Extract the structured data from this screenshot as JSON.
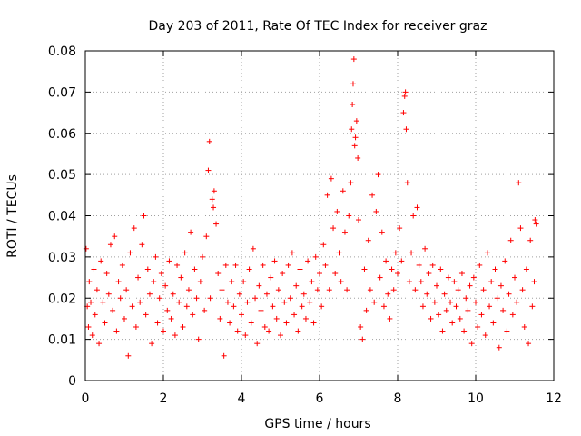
{
  "chart_data": {
    "type": "scatter",
    "title": "Day 203 of 2011, Rate Of TEC Index for receiver graz",
    "xlabel": "GPS time / hours",
    "ylabel": "ROTI / TECUs",
    "xlim": [
      0,
      12
    ],
    "ylim": [
      0,
      0.08
    ],
    "x_ticks": [
      0,
      2,
      4,
      6,
      8,
      10,
      12
    ],
    "x_tick_labels": [
      "0",
      "2",
      "4",
      "6",
      "8",
      "10",
      "12"
    ],
    "y_ticks": [
      0,
      0.01,
      0.02,
      0.03,
      0.04,
      0.05,
      0.06,
      0.07,
      0.08
    ],
    "y_tick_labels": [
      "0",
      "0.01",
      "0.02",
      "0.03",
      "0.04",
      "0.05",
      "0.06",
      "0.07",
      "0.08"
    ],
    "grid": true,
    "marker": "+",
    "marker_color": "#ff0000",
    "series": [
      {
        "name": "ROTI",
        "points": [
          [
            0.02,
            0.032
          ],
          [
            0.05,
            0.018
          ],
          [
            0.08,
            0.013
          ],
          [
            0.1,
            0.024
          ],
          [
            0.14,
            0.019
          ],
          [
            0.18,
            0.011
          ],
          [
            0.22,
            0.027
          ],
          [
            0.25,
            0.016
          ],
          [
            0.3,
            0.022
          ],
          [
            0.35,
            0.009
          ],
          [
            0.4,
            0.029
          ],
          [
            0.45,
            0.019
          ],
          [
            0.5,
            0.014
          ],
          [
            0.55,
            0.026
          ],
          [
            0.6,
            0.021
          ],
          [
            0.65,
            0.033
          ],
          [
            0.7,
            0.017
          ],
          [
            0.75,
            0.035
          ],
          [
            0.8,
            0.012
          ],
          [
            0.85,
            0.024
          ],
          [
            0.9,
            0.02
          ],
          [
            0.95,
            0.028
          ],
          [
            1.0,
            0.015
          ],
          [
            1.05,
            0.022
          ],
          [
            1.1,
            0.006
          ],
          [
            1.15,
            0.031
          ],
          [
            1.2,
            0.018
          ],
          [
            1.25,
            0.037
          ],
          [
            1.3,
            0.013
          ],
          [
            1.35,
            0.025
          ],
          [
            1.4,
            0.019
          ],
          [
            1.45,
            0.033
          ],
          [
            1.5,
            0.04
          ],
          [
            1.55,
            0.016
          ],
          [
            1.6,
            0.027
          ],
          [
            1.65,
            0.021
          ],
          [
            1.7,
            0.009
          ],
          [
            1.75,
            0.024
          ],
          [
            1.8,
            0.03
          ],
          [
            1.85,
            0.014
          ],
          [
            1.9,
            0.02
          ],
          [
            1.95,
            0.026
          ],
          [
            2.0,
            0.012
          ],
          [
            2.05,
            0.023
          ],
          [
            2.1,
            0.017
          ],
          [
            2.15,
            0.029
          ],
          [
            2.2,
            0.015
          ],
          [
            2.25,
            0.021
          ],
          [
            2.3,
            0.011
          ],
          [
            2.35,
            0.028
          ],
          [
            2.4,
            0.019
          ],
          [
            2.45,
            0.025
          ],
          [
            2.5,
            0.013
          ],
          [
            2.55,
            0.031
          ],
          [
            2.6,
            0.018
          ],
          [
            2.65,
            0.022
          ],
          [
            2.7,
            0.036
          ],
          [
            2.75,
            0.016
          ],
          [
            2.8,
            0.027
          ],
          [
            2.85,
            0.02
          ],
          [
            2.9,
            0.01
          ],
          [
            2.95,
            0.024
          ],
          [
            3.0,
            0.03
          ],
          [
            3.05,
            0.017
          ],
          [
            3.1,
            0.035
          ],
          [
            3.15,
            0.051
          ],
          [
            3.18,
            0.058
          ],
          [
            3.2,
            0.02
          ],
          [
            3.25,
            0.044
          ],
          [
            3.28,
            0.042
          ],
          [
            3.3,
            0.046
          ],
          [
            3.35,
            0.038
          ],
          [
            3.4,
            0.026
          ],
          [
            3.45,
            0.015
          ],
          [
            3.5,
            0.022
          ],
          [
            3.55,
            0.006
          ],
          [
            3.6,
            0.028
          ],
          [
            3.65,
            0.019
          ],
          [
            3.7,
            0.014
          ],
          [
            3.75,
            0.024
          ],
          [
            3.8,
            0.018
          ],
          [
            3.85,
            0.028
          ],
          [
            3.9,
            0.012
          ],
          [
            3.95,
            0.021
          ],
          [
            4.0,
            0.016
          ],
          [
            4.05,
            0.024
          ],
          [
            4.1,
            0.011
          ],
          [
            4.15,
            0.019
          ],
          [
            4.2,
            0.027
          ],
          [
            4.25,
            0.014
          ],
          [
            4.3,
            0.032
          ],
          [
            4.35,
            0.02
          ],
          [
            4.4,
            0.009
          ],
          [
            4.45,
            0.023
          ],
          [
            4.5,
            0.017
          ],
          [
            4.55,
            0.028
          ],
          [
            4.6,
            0.013
          ],
          [
            4.65,
            0.021
          ],
          [
            4.7,
            0.012
          ],
          [
            4.75,
            0.025
          ],
          [
            4.8,
            0.018
          ],
          [
            4.85,
            0.029
          ],
          [
            4.9,
            0.015
          ],
          [
            4.95,
            0.022
          ],
          [
            5.0,
            0.011
          ],
          [
            5.05,
            0.026
          ],
          [
            5.1,
            0.019
          ],
          [
            5.15,
            0.014
          ],
          [
            5.2,
            0.028
          ],
          [
            5.25,
            0.02
          ],
          [
            5.3,
            0.031
          ],
          [
            5.35,
            0.016
          ],
          [
            5.4,
            0.023
          ],
          [
            5.45,
            0.012
          ],
          [
            5.5,
            0.027
          ],
          [
            5.55,
            0.018
          ],
          [
            5.6,
            0.021
          ],
          [
            5.65,
            0.015
          ],
          [
            5.7,
            0.029
          ],
          [
            5.75,
            0.019
          ],
          [
            5.8,
            0.024
          ],
          [
            5.85,
            0.014
          ],
          [
            5.9,
            0.03
          ],
          [
            5.95,
            0.022
          ],
          [
            6.0,
            0.026
          ],
          [
            6.05,
            0.018
          ],
          [
            6.1,
            0.033
          ],
          [
            6.15,
            0.028
          ],
          [
            6.2,
            0.045
          ],
          [
            6.25,
            0.022
          ],
          [
            6.3,
            0.049
          ],
          [
            6.35,
            0.037
          ],
          [
            6.4,
            0.026
          ],
          [
            6.45,
            0.041
          ],
          [
            6.5,
            0.031
          ],
          [
            6.55,
            0.024
          ],
          [
            6.6,
            0.046
          ],
          [
            6.65,
            0.036
          ],
          [
            6.7,
            0.022
          ],
          [
            6.75,
            0.04
          ],
          [
            6.8,
            0.048
          ],
          [
            6.82,
            0.061
          ],
          [
            6.84,
            0.067
          ],
          [
            6.86,
            0.072
          ],
          [
            6.88,
            0.078
          ],
          [
            6.9,
            0.057
          ],
          [
            6.92,
            0.059
          ],
          [
            6.95,
            0.063
          ],
          [
            6.98,
            0.054
          ],
          [
            7.0,
            0.039
          ],
          [
            7.05,
            0.013
          ],
          [
            7.1,
            0.01
          ],
          [
            7.15,
            0.027
          ],
          [
            7.2,
            0.017
          ],
          [
            7.25,
            0.034
          ],
          [
            7.3,
            0.022
          ],
          [
            7.35,
            0.045
          ],
          [
            7.4,
            0.019
          ],
          [
            7.45,
            0.041
          ],
          [
            7.5,
            0.05
          ],
          [
            7.55,
            0.025
          ],
          [
            7.6,
            0.036
          ],
          [
            7.65,
            0.018
          ],
          [
            7.7,
            0.029
          ],
          [
            7.75,
            0.021
          ],
          [
            7.8,
            0.015
          ],
          [
            7.85,
            0.027
          ],
          [
            7.9,
            0.022
          ],
          [
            7.95,
            0.031
          ],
          [
            8.0,
            0.026
          ],
          [
            8.05,
            0.037
          ],
          [
            8.1,
            0.029
          ],
          [
            8.15,
            0.065
          ],
          [
            8.18,
            0.069
          ],
          [
            8.2,
            0.07
          ],
          [
            8.22,
            0.061
          ],
          [
            8.25,
            0.048
          ],
          [
            8.3,
            0.024
          ],
          [
            8.35,
            0.031
          ],
          [
            8.4,
            0.04
          ],
          [
            8.45,
            0.022
          ],
          [
            8.5,
            0.042
          ],
          [
            8.55,
            0.028
          ],
          [
            8.6,
            0.024
          ],
          [
            8.65,
            0.018
          ],
          [
            8.7,
            0.032
          ],
          [
            8.75,
            0.021
          ],
          [
            8.8,
            0.026
          ],
          [
            8.85,
            0.015
          ],
          [
            8.9,
            0.028
          ],
          [
            8.95,
            0.019
          ],
          [
            9.0,
            0.023
          ],
          [
            9.05,
            0.016
          ],
          [
            9.1,
            0.027
          ],
          [
            9.15,
            0.012
          ],
          [
            9.2,
            0.021
          ],
          [
            9.25,
            0.017
          ],
          [
            9.3,
            0.025
          ],
          [
            9.35,
            0.019
          ],
          [
            9.4,
            0.014
          ],
          [
            9.45,
            0.024
          ],
          [
            9.5,
            0.018
          ],
          [
            9.55,
            0.022
          ],
          [
            9.6,
            0.015
          ],
          [
            9.65,
            0.026
          ],
          [
            9.7,
            0.012
          ],
          [
            9.75,
            0.02
          ],
          [
            9.8,
            0.017
          ],
          [
            9.85,
            0.023
          ],
          [
            9.9,
            0.009
          ],
          [
            9.95,
            0.025
          ],
          [
            10.0,
            0.019
          ],
          [
            10.05,
            0.013
          ],
          [
            10.1,
            0.028
          ],
          [
            10.15,
            0.016
          ],
          [
            10.2,
            0.022
          ],
          [
            10.25,
            0.011
          ],
          [
            10.3,
            0.031
          ],
          [
            10.35,
            0.018
          ],
          [
            10.4,
            0.024
          ],
          [
            10.45,
            0.014
          ],
          [
            10.5,
            0.027
          ],
          [
            10.55,
            0.02
          ],
          [
            10.6,
            0.008
          ],
          [
            10.65,
            0.023
          ],
          [
            10.7,
            0.017
          ],
          [
            10.75,
            0.029
          ],
          [
            10.8,
            0.012
          ],
          [
            10.85,
            0.021
          ],
          [
            10.9,
            0.034
          ],
          [
            10.95,
            0.016
          ],
          [
            11.0,
            0.025
          ],
          [
            11.05,
            0.019
          ],
          [
            11.1,
            0.048
          ],
          [
            11.15,
            0.037
          ],
          [
            11.2,
            0.022
          ],
          [
            11.25,
            0.013
          ],
          [
            11.3,
            0.027
          ],
          [
            11.35,
            0.009
          ],
          [
            11.4,
            0.034
          ],
          [
            11.45,
            0.018
          ],
          [
            11.5,
            0.024
          ],
          [
            11.52,
            0.039
          ],
          [
            11.55,
            0.038
          ]
        ]
      }
    ]
  }
}
